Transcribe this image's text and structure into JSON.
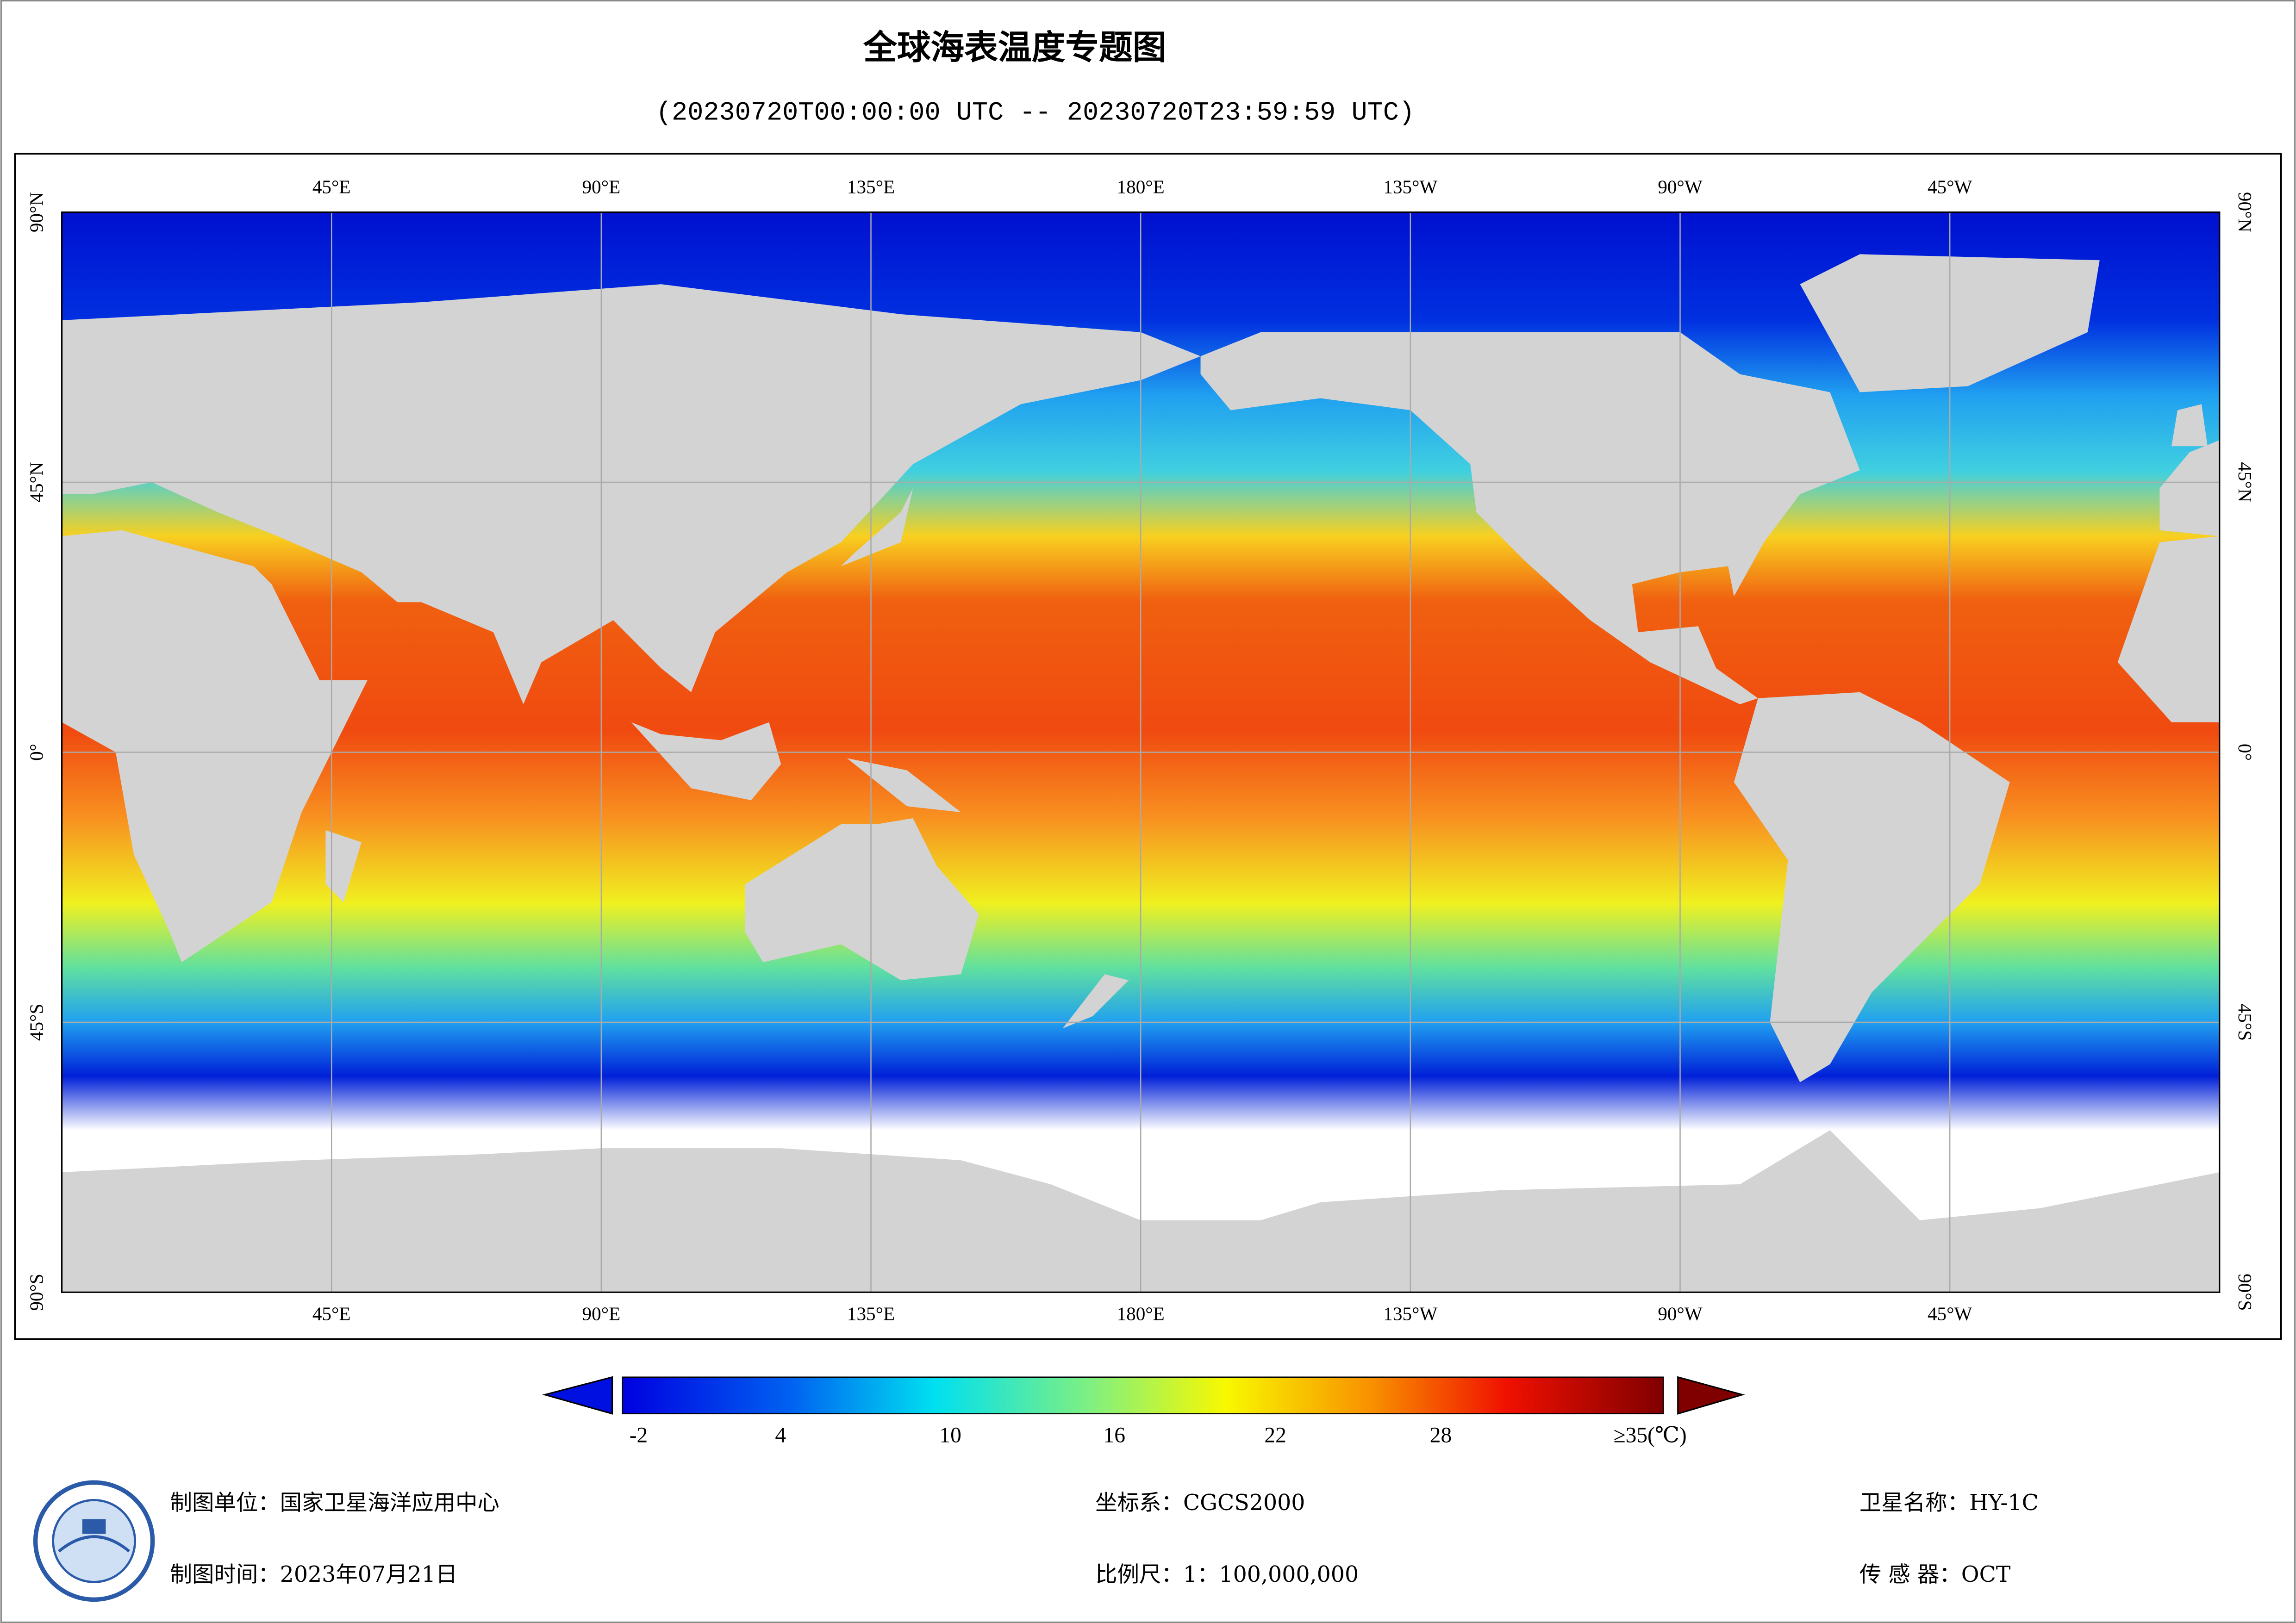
{
  "header": {
    "title": "全球海表温度专题图",
    "subtitle": "(20230720T00:00:00 UTC -- 20230720T23:59:59 UTC)"
  },
  "map": {
    "lon_labels": [
      "45°E",
      "90°E",
      "135°E",
      "180°E",
      "135°W",
      "90°W",
      "45°W"
    ],
    "lat_labels": [
      "90°N",
      "45°N",
      "0°",
      "45°S",
      "90°S"
    ]
  },
  "colorbar": {
    "labels": [
      "-2",
      "4",
      "10",
      "16",
      "22",
      "28",
      "≥35(℃)"
    ]
  },
  "footer": {
    "unit": "制图单位：国家卫星海洋应用中心",
    "time": "制图时间：2023年07月21日",
    "crs": "坐标系：CGCS2000",
    "scale": "比例尺：1：100,000,000",
    "satellite": "卫星名称：HY-1C",
    "sensor": "传 感 器：OCT"
  }
}
